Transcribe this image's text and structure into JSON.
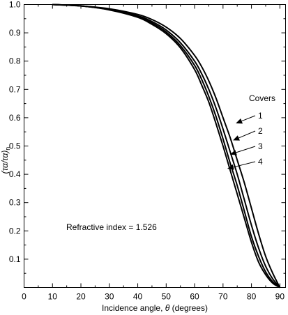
{
  "chart_data": {
    "type": "line",
    "xlabel_prefix": "Incidence angle, ",
    "xlabel_symbol": "θ",
    "xlabel_suffix": " (degrees)",
    "ylabel": "(τα/τα)",
    "ylabel_sub": "n",
    "xlim": [
      0,
      92
    ],
    "ylim": [
      0,
      1.0
    ],
    "xticks": [
      0,
      10,
      20,
      30,
      40,
      50,
      60,
      70,
      80,
      90
    ],
    "yticks": [
      0.1,
      0.2,
      0.3,
      0.4,
      0.5,
      0.6,
      0.7,
      0.8,
      0.9,
      1.0
    ],
    "x": [
      10,
      20,
      30,
      40,
      45,
      50,
      55,
      60,
      62.5,
      65,
      67.5,
      70,
      72.5,
      75,
      77.5,
      80,
      82.5,
      85,
      87.5,
      90
    ],
    "series": [
      {
        "values": [
          1.0,
          0.995,
          0.985,
          0.965,
          0.947,
          0.92,
          0.88,
          0.82,
          0.78,
          0.73,
          0.67,
          0.6,
          0.53,
          0.45,
          0.37,
          0.28,
          0.19,
          0.11,
          0.05,
          0.0
        ]
      },
      {
        "values": [
          1.0,
          0.995,
          0.983,
          0.96,
          0.94,
          0.91,
          0.865,
          0.8,
          0.755,
          0.7,
          0.635,
          0.56,
          0.48,
          0.4,
          0.31,
          0.22,
          0.14,
          0.075,
          0.03,
          0.0
        ]
      },
      {
        "values": [
          1.0,
          0.995,
          0.982,
          0.957,
          0.935,
          0.903,
          0.855,
          0.785,
          0.735,
          0.675,
          0.605,
          0.525,
          0.44,
          0.36,
          0.27,
          0.18,
          0.11,
          0.055,
          0.02,
          0.0
        ]
      },
      {
        "values": [
          1.0,
          0.995,
          0.981,
          0.955,
          0.93,
          0.897,
          0.847,
          0.77,
          0.715,
          0.655,
          0.58,
          0.5,
          0.415,
          0.33,
          0.245,
          0.16,
          0.09,
          0.045,
          0.015,
          0.0
        ]
      }
    ],
    "legend_title": "Covers",
    "legend_labels": [
      "1",
      "2",
      "3",
      "4"
    ],
    "legend_arrow_targets": [
      {
        "x": 74.5,
        "y": 0.58
      },
      {
        "x": 73.5,
        "y": 0.52
      },
      {
        "x": 72.5,
        "y": 0.47
      },
      {
        "x": 71.5,
        "y": 0.42
      }
    ],
    "annotation": "Refractive index = 1.526",
    "grid": false
  }
}
